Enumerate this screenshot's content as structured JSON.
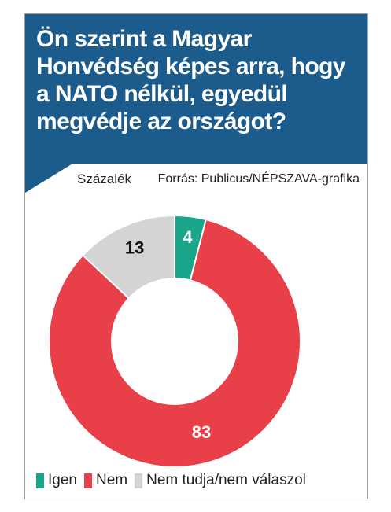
{
  "header": {
    "title": "Ön szerint a Magyar Honvédség képes arra, hogy a NATO nélkül, egyedül megvédje az országot?"
  },
  "unit_label": "Százalék",
  "source_label": "Forrás: Publicus/NÉPSZAVA-grafika",
  "colors": {
    "header": "#1b5c8c",
    "igen": "#1aa68a",
    "nem": "#e93f48",
    "nem_tudja": "#d4d4d4"
  },
  "chart_data": {
    "type": "pie",
    "variant": "donut",
    "categories": [
      "Igen",
      "Nem",
      "Nem tudja/nem válaszol"
    ],
    "values": [
      4,
      83,
      13
    ],
    "legend_position": "bottom"
  },
  "legend": {
    "items": [
      {
        "label": "Igen",
        "color": "#1aa68a"
      },
      {
        "label": "Nem",
        "color": "#e93f48"
      },
      {
        "label": "Nem tudja/nem válaszol",
        "color": "#d4d4d4"
      }
    ]
  }
}
